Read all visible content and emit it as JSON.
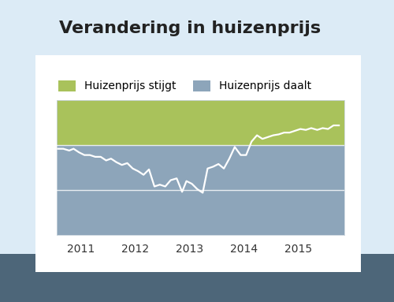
{
  "chart_data": {
    "type": "line",
    "title": "Verandering in huizenprijs",
    "x": [
      2010.57,
      2010.67,
      2010.78,
      2010.86,
      2010.96,
      2011.06,
      2011.16,
      2011.26,
      2011.36,
      2011.46,
      2011.55,
      2011.65,
      2011.75,
      2011.85,
      2011.95,
      2012.05,
      2012.15,
      2012.25,
      2012.35,
      2012.45,
      2012.55,
      2012.65,
      2012.76,
      2012.86,
      2012.94,
      2013.04,
      2013.14,
      2013.24,
      2013.33,
      2013.43,
      2013.53,
      2013.63,
      2013.73,
      2013.83,
      2013.94,
      2014.04,
      2014.14,
      2014.24,
      2014.34,
      2014.44,
      2014.54,
      2014.64,
      2014.74,
      2014.84,
      2014.94,
      2015.04,
      2015.14,
      2015.24,
      2015.35,
      2015.45,
      2015.55,
      2015.65,
      2015.75
    ],
    "values": [
      -0.4,
      -0.4,
      -0.6,
      -0.4,
      -0.8,
      -1.1,
      -1.1,
      -1.3,
      -1.3,
      -1.7,
      -1.5,
      -1.9,
      -2.2,
      -2.0,
      -2.6,
      -2.9,
      -3.3,
      -2.7,
      -4.6,
      -4.4,
      -4.6,
      -3.9,
      -3.7,
      -5.2,
      -4.0,
      -4.3,
      -4.9,
      -5.3,
      -2.6,
      -2.4,
      -2.1,
      -2.6,
      -1.5,
      -0.2,
      -1.1,
      -1.1,
      0.4,
      1.1,
      0.7,
      0.9,
      1.1,
      1.2,
      1.4,
      1.4,
      1.6,
      1.8,
      1.7,
      1.9,
      1.7,
      1.9,
      1.8,
      2.2,
      2.2
    ],
    "color": "#ffffff",
    "baseline": 0,
    "areas": [
      {
        "name": "Huizenprijs stijgt",
        "color": "#a9c25b",
        "side": "above"
      },
      {
        "name": "Huizenprijs daalt",
        "color": "#8da5ba",
        "side": "below"
      }
    ],
    "xlim": [
      2010.55,
      2015.85
    ],
    "xticks": [
      2011,
      2012,
      2013,
      2014,
      2015
    ],
    "ylim": [
      -10,
      5
    ],
    "yticks": [
      -5,
      0
    ],
    "grid": true,
    "legend": "top",
    "tick_labels": "x"
  }
}
